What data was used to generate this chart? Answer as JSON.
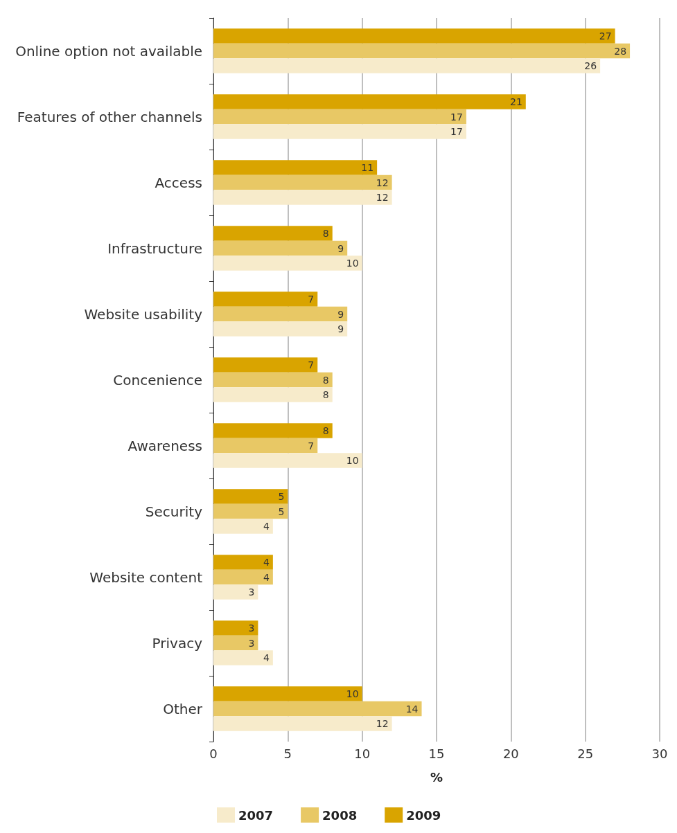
{
  "chart_data": {
    "type": "bar",
    "orientation": "horizontal",
    "xlabel": "%",
    "categories": [
      "Online option not available",
      "Features of other channels",
      "Access",
      "Infrastructure",
      "Website usability",
      "Concenience",
      "Awareness",
      "Security",
      "Website content",
      "Privacy",
      "Other"
    ],
    "series": [
      {
        "name": "2007",
        "color": "#f7ebcb",
        "values": [
          26,
          17,
          12,
          10,
          9,
          8,
          10,
          4,
          3,
          4,
          12
        ]
      },
      {
        "name": "2008",
        "color": "#e8c865",
        "values": [
          28,
          17,
          12,
          9,
          9,
          8,
          7,
          5,
          4,
          3,
          14
        ]
      },
      {
        "name": "2009",
        "color": "#d9a400",
        "values": [
          27,
          21,
          11,
          8,
          7,
          7,
          8,
          5,
          4,
          3,
          10
        ]
      }
    ],
    "xlim": [
      0,
      30
    ],
    "xticks": [
      0,
      5,
      10,
      15,
      20,
      25,
      30
    ],
    "grid": "x",
    "legend": "bottom",
    "data_labels": true
  }
}
